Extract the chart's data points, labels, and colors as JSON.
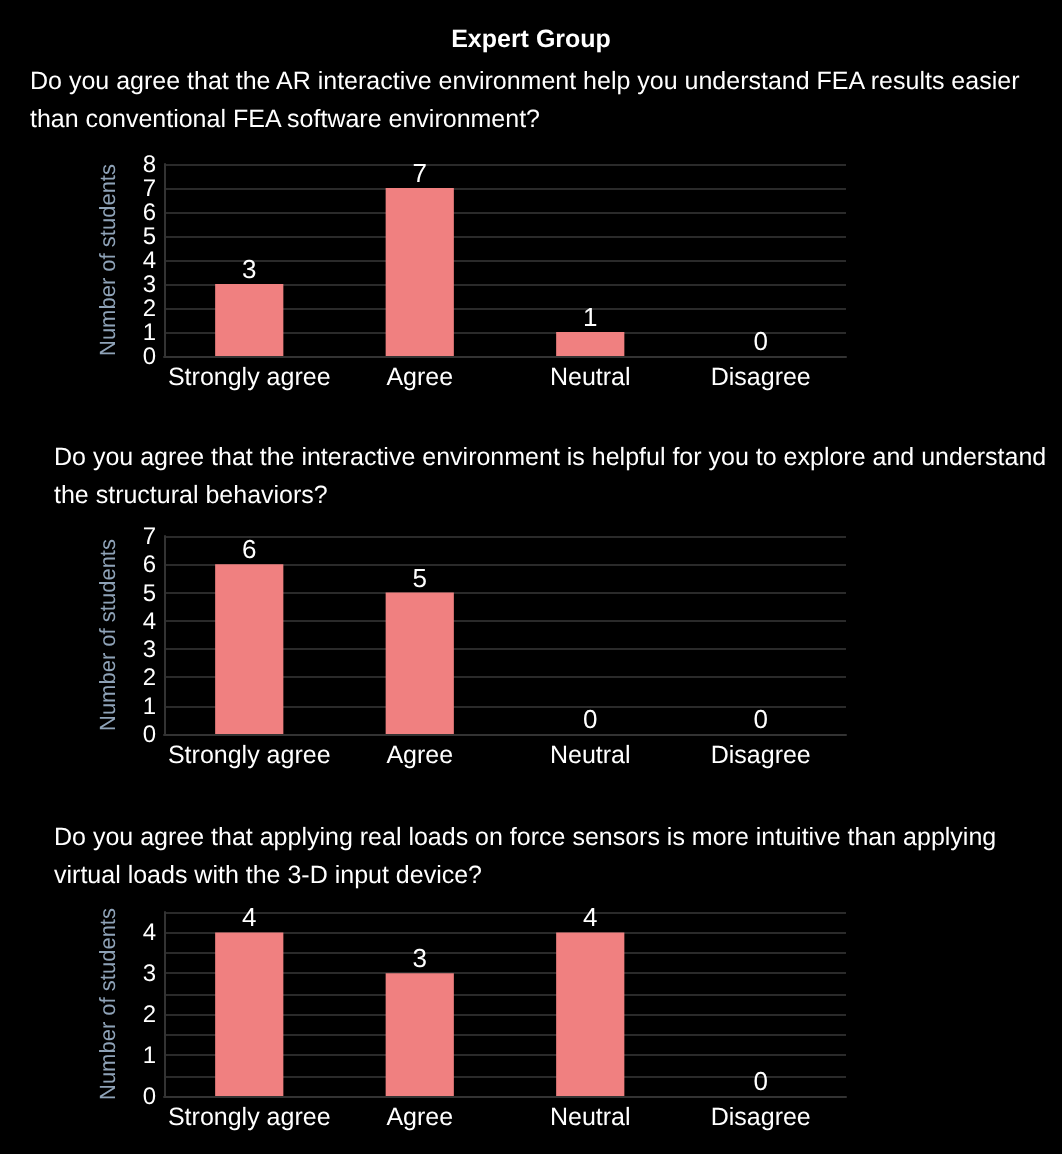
{
  "chart_data": [
    {
      "type": "bar",
      "title": "Expert Group",
      "subtitle": "Do you agree that the AR interactive environment help you understand FEA results easier than conventional FEA software environment?",
      "ylabel": "Number of students",
      "categories": [
        "Strongly agree",
        "Agree",
        "Neutral",
        "Disagree"
      ],
      "values": [
        3,
        7,
        1,
        0
      ],
      "color": "#f08080",
      "ylim": [
        0,
        8
      ],
      "yticks": [
        0,
        1,
        2,
        3,
        4,
        5,
        6,
        7,
        8
      ],
      "grid": "y",
      "data_labels": true
    },
    {
      "type": "bar",
      "title": "Do you agree that the interactive environment is helpful for you to explore and understand the structural behaviors?",
      "ylabel": "Number of students",
      "categories": [
        "Strongly agree",
        "Agree",
        "Neutral",
        "Disagree"
      ],
      "values": [
        6,
        5,
        0,
        0
      ],
      "color": "#f08080",
      "ylim": [
        0,
        7
      ],
      "yticks": [
        0,
        1,
        2,
        3,
        4,
        5,
        6,
        7
      ],
      "grid": "y",
      "data_labels": true
    },
    {
      "type": "bar",
      "title": "Do you agree that applying real loads on force sensors is more intuitive than applying virtual loads with the 3-D input device?",
      "ylabel": "Number of students",
      "categories": [
        "Strongly agree",
        "Agree",
        "Neutral",
        "Disagree"
      ],
      "values": [
        4,
        3,
        4,
        0
      ],
      "color": "#f08080",
      "ylim": [
        0,
        4.5
      ],
      "yticks": [
        0,
        {
          "value": 0.5,
          "label": null
        },
        1,
        {
          "value": 1.5,
          "label": null
        },
        2,
        {
          "value": 2.5,
          "label": null
        },
        3,
        {
          "value": 3.5,
          "label": null
        },
        4,
        {
          "value": 4.5,
          "label": null
        }
      ],
      "grid": "y",
      "data_labels": true
    }
  ]
}
